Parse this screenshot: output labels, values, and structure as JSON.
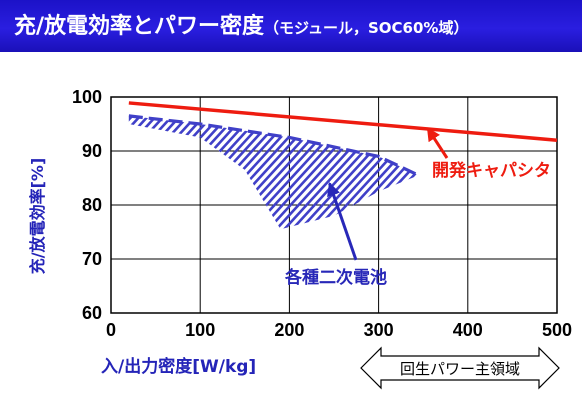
{
  "title": {
    "main": "充/放電効率とパワー密度",
    "note": "（モジュール，SOC60%域）"
  },
  "colors": {
    "header_bg": "#2218d0",
    "capacitor_line": "#ee1c10",
    "battery_hatch": "#4040c8",
    "axis_label": "#2424b8"
  },
  "chart_data": {
    "type": "line",
    "xlabel": "入/出力密度[W/kg]",
    "ylabel": "充/放電効率[%]",
    "xlim": [
      0,
      500
    ],
    "ylim": [
      60,
      100
    ],
    "xticks": [
      0,
      100,
      200,
      300,
      400,
      500
    ],
    "yticks": [
      60,
      70,
      80,
      90,
      100
    ],
    "grid": true,
    "series": [
      {
        "name": "開発キャパシタ",
        "x": [
          20,
          500
        ],
        "y": [
          98.9,
          92.0
        ]
      }
    ],
    "regions": [
      {
        "name": "各種二次電池",
        "upper_edge_x": [
          20,
          100,
          200,
          300,
          345
        ],
        "upper_edge_y": [
          96.5,
          95.0,
          92.5,
          89.0,
          85.5
        ],
        "lower_edge_x": [
          20,
          100,
          150,
          190,
          250,
          300,
          345
        ],
        "lower_edge_y": [
          95.0,
          92.5,
          86.5,
          75.5,
          78.0,
          82.5,
          85.5
        ]
      }
    ],
    "annotations": [
      {
        "text": "開発キャパシタ",
        "target": [
          355,
          94.2
        ]
      },
      {
        "text": "各種二次電池",
        "target": [
          245,
          84
        ]
      },
      {
        "text": "回生パワー主領域"
      }
    ]
  }
}
